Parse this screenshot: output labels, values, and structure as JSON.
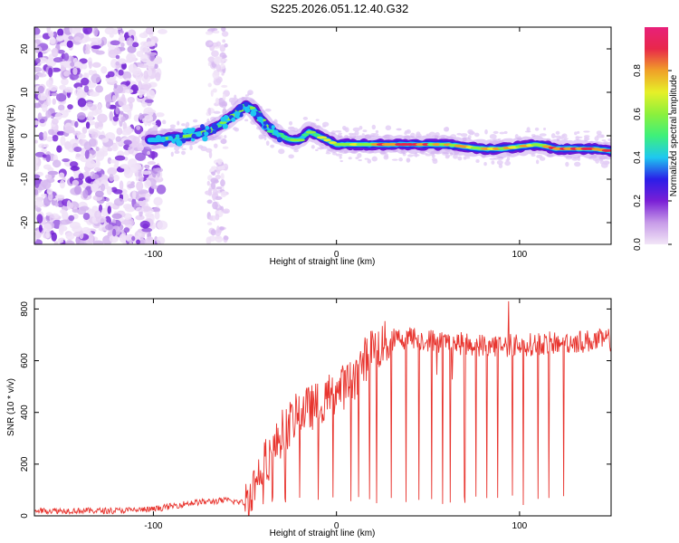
{
  "title": "S225.2026.051.12.40.G32",
  "chart_data": [
    {
      "type": "heatmap",
      "xlabel": "Height of straight line (km)",
      "ylabel": "Frequency (Hz)",
      "xlim": [
        -165,
        150
      ],
      "ylim": [
        -25,
        25
      ],
      "xticks": [
        -100,
        0,
        100
      ],
      "yticks": [
        -20,
        -10,
        0,
        10,
        20
      ],
      "colorbar": {
        "label": "Normalized spectral amplitude",
        "range": [
          0,
          1
        ],
        "ticks": [
          "0.0",
          "0.2",
          "0.4",
          "0.6",
          "0.8"
        ],
        "colors": [
          "#f2e6f7",
          "#c79be8",
          "#7a1fd6",
          "#2a1ee8",
          "#1ec8f0",
          "#3ef07a",
          "#8cf03c",
          "#e6f028",
          "#f0a028",
          "#e8284a",
          "#e8207a"
        ]
      },
      "ridge": {
        "x": [
          -100,
          -90,
          -80,
          -70,
          -62,
          -55,
          -50,
          -45,
          -40,
          -35,
          -30,
          -25,
          -20,
          -15,
          -10,
          -5,
          0,
          10,
          20,
          30,
          40,
          50,
          60,
          70,
          80,
          90,
          100,
          110,
          120,
          130,
          140,
          150
        ],
        "y": [
          -1.0,
          -0.5,
          0.0,
          1.0,
          3.0,
          5.0,
          7.0,
          6.0,
          3.0,
          1.0,
          0.0,
          -1.0,
          -1.0,
          1.0,
          0.0,
          -1.0,
          -2.0,
          -2.0,
          -2.0,
          -2.0,
          -2.0,
          -2.0,
          -2.0,
          -2.5,
          -3.0,
          -3.0,
          -2.5,
          -2.0,
          -3.0,
          -3.0,
          -3.0,
          -3.5
        ]
      }
    },
    {
      "type": "line",
      "xlabel": "Height of straight line (km)",
      "ylabel": "SNR (10 * v/v)",
      "xlim": [
        -165,
        150
      ],
      "ylim": [
        0,
        840
      ],
      "xticks": [
        -100,
        0,
        100
      ],
      "yticks": [
        0,
        200,
        400,
        600,
        800
      ],
      "color": "#e8352f",
      "trend": {
        "x": [
          -165,
          -120,
          -100,
          -80,
          -60,
          -50,
          -45,
          -40,
          -35,
          -30,
          -20,
          -10,
          0,
          10,
          15,
          20,
          25,
          30,
          40,
          60,
          80,
          100,
          120,
          150
        ],
        "y": [
          20,
          20,
          25,
          50,
          60,
          50,
          120,
          200,
          240,
          320,
          400,
          430,
          480,
          530,
          600,
          640,
          660,
          680,
          690,
          670,
          660,
          660,
          670,
          680
        ]
      },
      "dips_x": [
        -40,
        -35,
        -28,
        -20,
        -10,
        -2,
        8,
        12,
        18,
        22,
        30,
        38,
        45,
        52,
        58,
        62,
        70,
        76,
        82,
        88,
        96,
        102,
        110,
        116,
        124
      ],
      "spike": {
        "x": 94,
        "y": 830
      }
    }
  ]
}
